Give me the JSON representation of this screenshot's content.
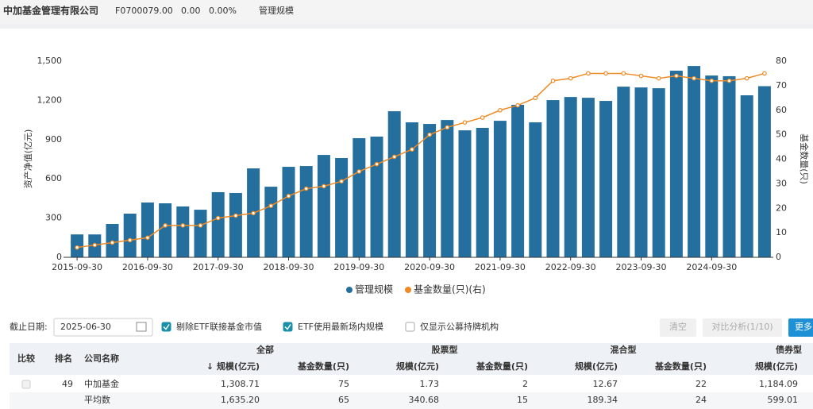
{
  "header": {
    "title": "中加基金管理有限公司",
    "code": "F0700079.00",
    "change": "0.00",
    "change_pct": "0.00%",
    "tab": "管理规模"
  },
  "chart_data": {
    "type": "bar",
    "y_label": "资产净值(亿元)",
    "y2_label": "基金数量(只)",
    "categories": [
      "2015-09-30",
      null,
      null,
      null,
      "2016-09-30",
      null,
      null,
      null,
      "2017-09-30",
      null,
      null,
      null,
      "2018-09-30",
      null,
      null,
      null,
      "2019-09-30",
      null,
      null,
      null,
      "2020-09-30",
      null,
      null,
      null,
      "2021-09-30",
      null,
      null,
      null,
      "2022-09-30",
      null,
      null,
      null,
      "2023-09-30",
      null,
      null,
      null,
      "2024-09-30",
      null,
      null,
      null
    ],
    "series": [
      {
        "name": "管理规模",
        "color": "#246f9e",
        "type": "bar",
        "values": [
          175,
          175,
          255,
          334,
          419,
          413,
          389,
          364,
          498,
          492,
          680,
          540,
          692,
          698,
          783,
          759,
          911,
          923,
          1117,
          1032,
          1020,
          1050,
          971,
          990,
          1044,
          1166,
          1032,
          1202,
          1226,
          1220,
          1196,
          1305,
          1299,
          1293,
          1427,
          1463,
          1390,
          1385,
          1239,
          1308.71
        ]
      },
      {
        "name": "基金数量(只)(右)",
        "color": "#f08a24",
        "type": "line",
        "axis": "y2",
        "values": [
          4,
          5,
          6,
          7,
          8,
          13,
          13,
          13,
          16,
          17,
          18,
          21,
          25,
          28,
          29,
          31,
          35,
          38,
          41,
          44,
          50,
          53,
          55,
          57,
          60,
          62,
          65,
          72,
          73,
          75,
          75,
          75,
          74,
          73,
          74,
          73,
          72,
          72,
          73,
          75
        ]
      }
    ],
    "ylim": [
      0,
      1500
    ],
    "yticks": [
      0,
      300,
      600,
      900,
      {
        "value": 1200,
        "label": "1,200"
      },
      {
        "value": 1500,
        "label": "1,500"
      }
    ],
    "y2lim": [
      0,
      80
    ],
    "y2ticks": [
      0,
      10,
      20,
      30,
      40,
      50,
      60,
      70,
      80
    ],
    "grid": false,
    "legend": "bottom"
  },
  "filters": {
    "date_label": "截止日期:",
    "date": "2025-06-30",
    "options": [
      {
        "label": "剔除ETF联接基金市值",
        "checked": true
      },
      {
        "label": "ETF使用最新场内规模",
        "checked": true
      },
      {
        "label": "仅显示公募持牌机构",
        "checked": false
      }
    ],
    "buttons": [
      "清空",
      "对比分析(1/10)",
      "更多"
    ]
  },
  "table": {
    "groups": [
      "比较",
      "排名",
      "公司名称",
      "全部",
      "股票型",
      "混合型",
      "债券型"
    ],
    "subheaders": [
      "↓ 规模(亿元)",
      "基金数量(只)",
      "规模(亿元)",
      "基金数量(只)",
      "规模(亿元)",
      "基金数量(只)",
      "规模(亿元)"
    ],
    "rows": [
      {
        "compare": true,
        "rank": "49",
        "name": "中加基金",
        "cells": [
          "1,308.71",
          "75",
          "1.73",
          "2",
          "12.67",
          "22",
          "1,184.09"
        ]
      },
      {
        "name": "平均数",
        "cells": [
          "1,635.20",
          "65",
          "340.68",
          "15",
          "189.34",
          "24",
          "599.01"
        ]
      }
    ]
  }
}
